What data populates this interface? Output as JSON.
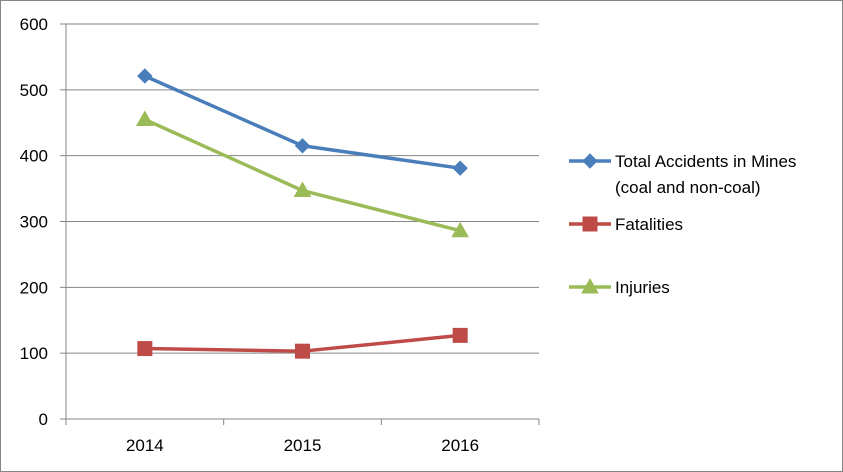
{
  "chart_data": {
    "type": "line",
    "categories": [
      "2014",
      "2015",
      "2016"
    ],
    "series": [
      {
        "name": "Total Accidents in Mines (coal and non-coal)",
        "name_lines": [
          "Total Accidents in Mines",
          "(coal and non-coal)"
        ],
        "values": [
          521,
          415,
          381
        ],
        "color": "#4a7ebb",
        "marker": "diamond"
      },
      {
        "name": "Fatalities",
        "name_lines": [
          "Fatalities"
        ],
        "values": [
          107,
          103,
          127
        ],
        "color": "#be4b48",
        "marker": "square"
      },
      {
        "name": "Injuries",
        "name_lines": [
          "Injuries"
        ],
        "values": [
          455,
          347,
          286
        ],
        "color": "#9bbb59",
        "marker": "triangle"
      }
    ],
    "ylim": [
      0,
      600
    ],
    "yticks": [
      0,
      100,
      200,
      300,
      400,
      500,
      600
    ],
    "title": "",
    "xlabel": "",
    "ylabel": "",
    "grid": "horizontal",
    "legend_position": "right"
  }
}
